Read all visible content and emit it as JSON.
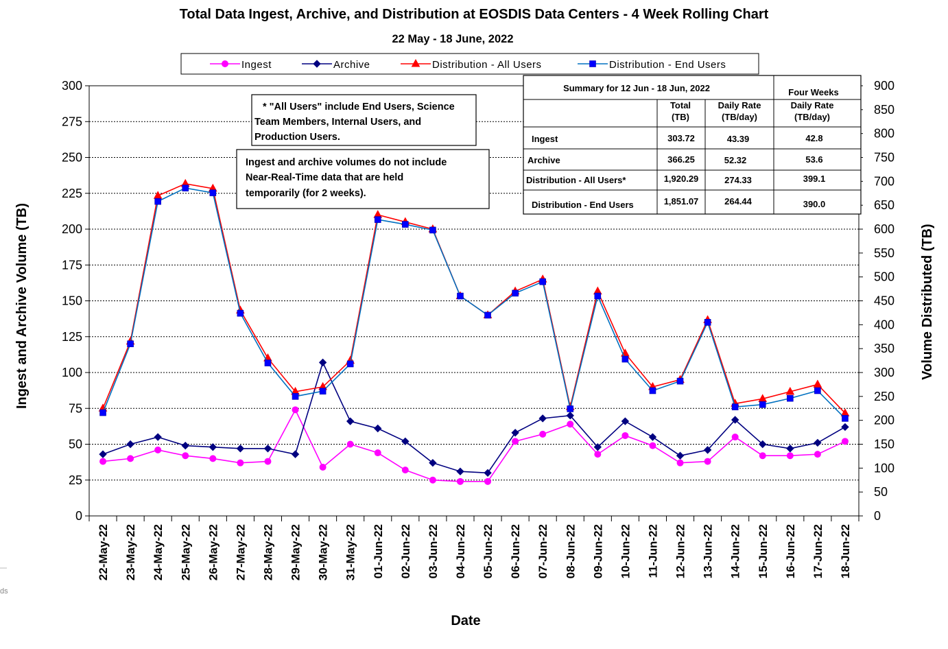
{
  "edge_fragment": "ds",
  "chart_data": {
    "type": "line",
    "title": "Total Data Ingest, Archive, and  Distribution at EOSDIS Data Centers - 4 Week Rolling Chart",
    "subtitle": "22  May   - 18  June,  2022",
    "xlabel": "Date",
    "ylabel_left": "Ingest and Archive Volume (TB)",
    "ylabel_right": "Volume Distributed (TB)",
    "ylim_left": [
      0,
      300
    ],
    "ylim_right": [
      0,
      900
    ],
    "yticks_left": [
      "0",
      "25",
      "50",
      "75",
      "100",
      "125",
      "150",
      "175",
      "200",
      "225",
      "250",
      "275",
      "300"
    ],
    "yticks_right": [
      "0",
      "50",
      "100",
      "150",
      "200",
      "250",
      "300",
      "350",
      "400",
      "450",
      "500",
      "550",
      "600",
      "650",
      "700",
      "750",
      "800",
      "850",
      "900"
    ],
    "grid": true,
    "legend_position": "top",
    "categories": [
      "22-May-22",
      "23-May-22",
      "24-May-22",
      "25-May-22",
      "26-May-22",
      "27-May-22",
      "28-May-22",
      "29-May-22",
      "30-May-22",
      "31-May-22",
      "01-Jun-22",
      "02-Jun-22",
      "03-Jun-22",
      "04-Jun-22",
      "05-Jun-22",
      "06-Jun-22",
      "07-Jun-22",
      "08-Jun-22",
      "09-Jun-22",
      "10-Jun-22",
      "11-Jun-22",
      "12-Jun-22",
      "13-Jun-22",
      "14-Jun-22",
      "15-Jun-22",
      "16-Jun-22",
      "17-Jun-22",
      "18-Jun-22"
    ],
    "series": [
      {
        "name": "Ingest",
        "axis": "left",
        "color": "#ff00ff",
        "line_color": "#ff00ff",
        "marker": "circle",
        "values": [
          38,
          40,
          46,
          42,
          40,
          37,
          38,
          74,
          34,
          50,
          44,
          32,
          25,
          24,
          24,
          52,
          57,
          64,
          43,
          56,
          49,
          37,
          38,
          55,
          42,
          42,
          43,
          52
        ]
      },
      {
        "name": "Archive",
        "axis": "left",
        "color": "#000080",
        "line_color": "#000080",
        "marker": "diamond",
        "values": [
          43,
          50,
          55,
          49,
          48,
          47,
          47,
          43,
          107,
          66,
          61,
          52,
          37,
          31,
          30,
          58,
          68,
          70,
          48,
          66,
          55,
          42,
          46,
          67,
          50,
          47,
          51,
          62
        ]
      },
      {
        "name": "Distribution - All Users",
        "axis": "right",
        "color": "#ff0000",
        "line_color": "#ff0000",
        "marker": "triangle",
        "values": [
          225,
          365,
          670,
          695,
          685,
          430,
          330,
          260,
          270,
          325,
          630,
          615,
          600,
          460,
          420,
          470,
          495,
          228,
          470,
          340,
          270,
          285,
          410,
          235,
          245,
          260,
          275,
          215
        ]
      },
      {
        "name": "Distribution - End Users",
        "axis": "right",
        "color": "#0000ff",
        "line_color": "#0070c0",
        "marker": "square",
        "values": [
          216,
          360,
          658,
          686,
          676,
          424,
          320,
          250,
          261,
          318,
          620,
          610,
          598,
          460,
          420,
          466,
          490,
          224,
          460,
          328,
          262,
          282,
          405,
          228,
          233,
          246,
          262,
          204
        ]
      }
    ]
  },
  "notes": {
    "users_note": [
      "* \"All Users\" include End Users, Science",
      "Team Members,  Internal Users, and",
      "Production Users."
    ],
    "nrt_note": [
      "Ingest and archive volumes do not include",
      "Near-Real-Time data that are held",
      "temporarily (for 2 weeks)."
    ]
  },
  "summary_table": {
    "title": "Summary  for  12  Jun   -  18  Jun,  2022",
    "four_weeks": "Four Weeks",
    "col_total": [
      "Total",
      "(TB)"
    ],
    "col_daily": [
      "Daily Rate",
      "(TB/day)"
    ],
    "col_fw": [
      "Daily Rate",
      "(TB/day)"
    ],
    "rows": [
      {
        "label": "Ingest",
        "total": "303.72",
        "daily": "43.39",
        "four_weeks": "42.8"
      },
      {
        "label": "Archive",
        "total": "366.25",
        "daily": "52.32",
        "four_weeks": "53.6"
      },
      {
        "label": "Distribution - All Users*",
        "total": "1,920.29",
        "daily": "274.33",
        "four_weeks": "399.1"
      },
      {
        "label": "Distribution - End Users",
        "total": "1,851.07",
        "daily": "264.44",
        "four_weeks": "390.0"
      }
    ]
  }
}
